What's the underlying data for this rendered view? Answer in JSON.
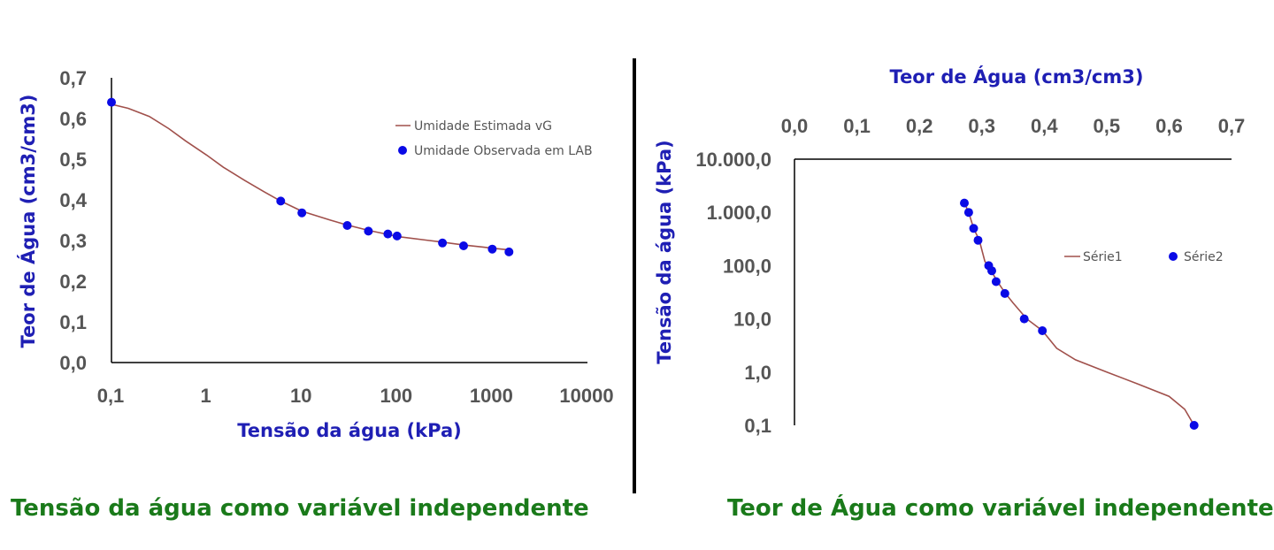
{
  "captions": {
    "left": "Tensão da água como variável independente",
    "right": "Teor de Água como variável independente"
  },
  "colors": {
    "curve": "#a0504b",
    "points": "#0a0ae6",
    "axis_label": "#1f1fb4",
    "caption": "#1a7a1a",
    "tick": "#555555"
  },
  "chart_data": [
    {
      "type": "scatter",
      "xlabel": "Tensão da água (kPa)",
      "ylabel": "Teor de Água (cm3/cm3)",
      "xscale": "log",
      "xlim": [
        0.1,
        10000
      ],
      "ylim": [
        0,
        0.7
      ],
      "xticks": [
        0.1,
        1,
        10,
        100,
        1000,
        10000
      ],
      "xtick_labels": [
        "0,1",
        "1",
        "10",
        "100",
        "1000",
        "10000"
      ],
      "yticks": [
        0,
        0.1,
        0.2,
        0.3,
        0.4,
        0.5,
        0.6,
        0.7
      ],
      "ytick_labels": [
        "0,0",
        "0,1",
        "0,2",
        "0,3",
        "0,4",
        "0,5",
        "0,6",
        "0,7"
      ],
      "legend_position": "right",
      "series": [
        {
          "name": "Umidade Estimada vG",
          "kind": "line",
          "x": [
            0.1,
            0.15,
            0.25,
            0.4,
            0.6,
            1,
            1.5,
            2.5,
            4,
            6,
            10,
            20,
            30,
            50,
            80,
            100,
            200,
            300,
            500,
            800,
            1000,
            1500
          ],
          "y": [
            0.635,
            0.625,
            0.605,
            0.575,
            0.545,
            0.51,
            0.48,
            0.448,
            0.42,
            0.397,
            0.372,
            0.35,
            0.338,
            0.325,
            0.315,
            0.31,
            0.301,
            0.296,
            0.289,
            0.284,
            0.281,
            0.277
          ]
        },
        {
          "name": "Umidade Observada em LAB",
          "kind": "points",
          "x": [
            0.1,
            6,
            10,
            30,
            50,
            80,
            100,
            300,
            500,
            1000,
            1500
          ],
          "y": [
            0.64,
            0.397,
            0.368,
            0.337,
            0.323,
            0.316,
            0.311,
            0.294,
            0.287,
            0.279,
            0.272
          ]
        }
      ]
    },
    {
      "type": "scatter",
      "xlabel": "Teor de Água (cm3/cm3)",
      "ylabel": "Tensão da água (kPa)",
      "x_axis_position": "top",
      "yscale": "log",
      "xlim": [
        0,
        0.7
      ],
      "ylim": [
        0.1,
        10000
      ],
      "xticks": [
        0,
        0.1,
        0.2,
        0.3,
        0.4,
        0.5,
        0.6,
        0.7
      ],
      "xtick_labels": [
        "0,0",
        "0,1",
        "0,2",
        "0,3",
        "0,4",
        "0,5",
        "0,6",
        "0,7"
      ],
      "yticks": [
        0.1,
        1,
        10,
        100,
        1000,
        10000
      ],
      "ytick_labels": [
        "0,1",
        "1,0",
        "10,0",
        "100,0",
        "1.000,0",
        "10.000,0"
      ],
      "legend_position": "right",
      "series": [
        {
          "name": "Série1",
          "kind": "line",
          "x": [
            0.64,
            0.625,
            0.6,
            0.55,
            0.5,
            0.45,
            0.42,
            0.397,
            0.372,
            0.35,
            0.338,
            0.325,
            0.315,
            0.305,
            0.296,
            0.287,
            0.279,
            0.272
          ],
          "y": [
            0.1,
            0.2,
            0.35,
            0.6,
            1,
            1.7,
            2.8,
            6,
            10,
            20,
            30,
            50,
            80,
            120,
            300,
            500,
            1000,
            1500
          ]
        },
        {
          "name": "Série2",
          "kind": "points",
          "x": [
            0.64,
            0.397,
            0.368,
            0.337,
            0.323,
            0.316,
            0.311,
            0.294,
            0.287,
            0.279,
            0.272
          ],
          "y": [
            0.1,
            6,
            10,
            30,
            50,
            80,
            100,
            300,
            500,
            1000,
            1500
          ]
        }
      ]
    }
  ]
}
